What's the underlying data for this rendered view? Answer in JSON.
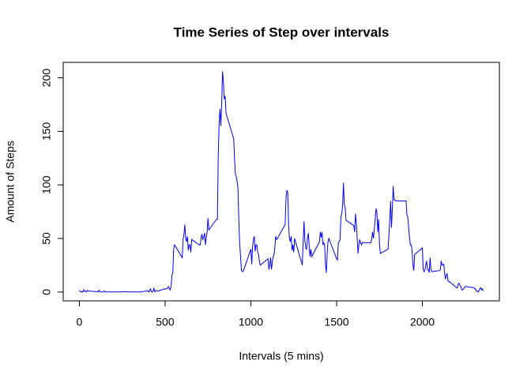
{
  "chart_data": {
    "type": "line",
    "title": "Time Series of Step over intervals",
    "x_label": "Intervals (5 mins)",
    "y_label": "Amount of Steps",
    "x": [
      0,
      5,
      10,
      15,
      20,
      25,
      30,
      35,
      40,
      45,
      50,
      55,
      100,
      105,
      110,
      115,
      120,
      125,
      130,
      135,
      140,
      145,
      150,
      155,
      200,
      205,
      210,
      215,
      220,
      225,
      230,
      235,
      240,
      245,
      250,
      255,
      300,
      305,
      310,
      315,
      320,
      325,
      330,
      335,
      340,
      345,
      350,
      355,
      400,
      405,
      410,
      415,
      420,
      425,
      430,
      435,
      440,
      445,
      450,
      455,
      500,
      505,
      510,
      515,
      520,
      525,
      530,
      535,
      540,
      545,
      550,
      555,
      600,
      605,
      610,
      615,
      620,
      625,
      630,
      635,
      640,
      645,
      650,
      655,
      700,
      705,
      710,
      715,
      720,
      725,
      730,
      735,
      740,
      745,
      750,
      755,
      800,
      805,
      810,
      815,
      820,
      825,
      830,
      835,
      840,
      845,
      850,
      855,
      900,
      905,
      910,
      915,
      920,
      925,
      930,
      935,
      940,
      945,
      950,
      955,
      1000,
      1005,
      1010,
      1015,
      1020,
      1025,
      1030,
      1035,
      1040,
      1045,
      1050,
      1055,
      1100,
      1105,
      1110,
      1115,
      1120,
      1125,
      1130,
      1135,
      1140,
      1145,
      1150,
      1155,
      1200,
      1205,
      1210,
      1215,
      1220,
      1225,
      1230,
      1235,
      1240,
      1245,
      1250,
      1255,
      1300,
      1305,
      1310,
      1315,
      1320,
      1325,
      1330,
      1335,
      1340,
      1345,
      1350,
      1355,
      1400,
      1405,
      1410,
      1415,
      1420,
      1425,
      1430,
      1435,
      1440,
      1445,
      1450,
      1455,
      1500,
      1505,
      1510,
      1515,
      1520,
      1525,
      1530,
      1535,
      1540,
      1545,
      1550,
      1555,
      1600,
      1605,
      1610,
      1615,
      1620,
      1625,
      1630,
      1635,
      1640,
      1645,
      1650,
      1655,
      1700,
      1705,
      1710,
      1715,
      1720,
      1725,
      1730,
      1735,
      1740,
      1745,
      1750,
      1755,
      1800,
      1805,
      1810,
      1815,
      1820,
      1825,
      1830,
      1835,
      1840,
      1845,
      1850,
      1855,
      1900,
      1905,
      1910,
      1915,
      1920,
      1925,
      1930,
      1935,
      1940,
      1945,
      1950,
      1955,
      2000,
      2005,
      2010,
      2015,
      2020,
      2025,
      2030,
      2035,
      2040,
      2045,
      2050,
      2055,
      2100,
      2105,
      2110,
      2115,
      2120,
      2125,
      2130,
      2135,
      2140,
      2145,
      2150,
      2155,
      2200,
      2205,
      2210,
      2215,
      2220,
      2225,
      2230,
      2235,
      2240,
      2245,
      2250,
      2255,
      2300,
      2305,
      2310,
      2315,
      2320,
      2325,
      2330,
      2335,
      2340,
      2345,
      2350,
      2355
    ],
    "series": [
      {
        "name": "steps",
        "color": "#0000ff",
        "values": [
          1.7,
          0.3,
          0.1,
          0.2,
          0.1,
          2.1,
          0.5,
          0.9,
          0,
          1.5,
          0.8,
          1.0,
          0.3,
          0.7,
          0,
          1.6,
          0.4,
          0,
          0,
          0,
          0.2,
          1.1,
          0,
          0,
          0,
          0,
          0,
          0.3,
          0,
          0,
          0,
          0,
          0,
          0,
          0.1,
          0.3,
          0,
          0,
          0,
          0,
          0,
          0,
          0,
          0,
          0,
          0,
          0.2,
          0,
          1.2,
          0,
          1.4,
          3.0,
          0.3,
          0,
          1,
          3.5,
          0.2,
          1.2,
          1.4,
          0.8,
          3,
          3,
          3,
          4,
          5,
          3,
          2,
          6,
          16,
          18,
          40,
          44,
          32,
          49,
          54,
          63,
          50,
          47,
          52,
          39,
          44,
          44,
          37,
          49,
          44,
          44,
          51,
          54,
          49,
          51,
          55,
          44,
          51,
          56,
          69,
          58,
          68,
          68,
          129,
          158,
          171,
          155,
          177,
          206,
          196,
          180,
          183,
          167,
          143,
          124,
          109,
          108,
          103,
          96,
          66,
          45,
          33,
          20,
          19,
          19,
          40,
          26,
          42,
          49,
          52,
          38,
          44,
          44,
          37,
          35,
          28,
          25,
          31,
          21,
          26,
          32,
          21,
          28,
          33,
          35,
          42,
          52,
          49,
          50,
          63,
          88,
          95,
          93,
          63,
          50,
          47,
          52,
          39,
          44,
          37,
          50,
          25,
          47,
          66,
          48,
          41,
          40,
          50,
          55,
          44,
          33,
          40,
          33,
          47,
          56,
          51,
          56,
          44,
          46,
          44,
          26,
          18,
          36,
          47,
          50,
          31,
          30,
          46,
          47,
          49,
          70,
          73,
          81,
          102,
          81,
          79,
          67,
          62,
          56,
          73,
          64,
          50,
          36,
          44,
          49,
          46,
          44,
          46,
          46,
          46,
          50,
          56,
          50,
          59,
          68,
          78,
          74,
          56,
          68,
          45,
          36,
          40,
          53,
          68,
          85,
          60,
          78,
          99,
          86,
          86,
          85,
          85,
          85,
          85,
          85,
          72,
          70,
          60,
          51,
          44,
          44,
          39,
          26,
          20,
          35,
          41,
          21,
          19,
          21,
          25,
          29,
          21,
          21,
          18,
          32,
          21,
          19,
          20,
          21,
          29,
          25,
          25,
          26,
          17,
          12,
          16,
          17,
          10,
          10,
          4,
          4,
          8,
          8,
          6,
          5,
          2,
          2,
          3,
          4,
          5,
          5,
          4,
          3,
          3,
          1,
          1,
          0,
          1,
          3,
          4,
          2,
          3,
          1
        ]
      }
    ],
    "xlim": [
      -94.2,
      2449.2
    ],
    "ylim": [
      -8.25,
      214.42
    ],
    "xticks": [
      0,
      500,
      1000,
      1500,
      2000
    ],
    "yticks": [
      0,
      50,
      100,
      150,
      200
    ],
    "grid": false
  }
}
